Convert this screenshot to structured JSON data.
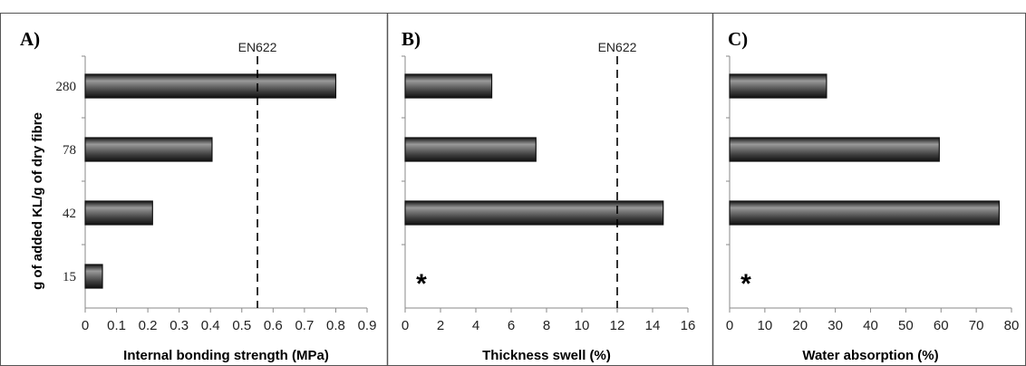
{
  "figure": {
    "ylabel": "g of added KL/g of dry fibre",
    "colors": {
      "bar_fill": "#3f3f3f",
      "bar_highlight": "#9a9a9a",
      "bar_edge": "#111111",
      "axis": "#8a8a8a",
      "frame": "#555555"
    }
  },
  "chart_data": [
    {
      "panel": "A)",
      "type": "bar",
      "orientation": "horizontal",
      "categories": [
        "15",
        "42",
        "78",
        "280"
      ],
      "values": [
        0.055,
        0.215,
        0.405,
        0.8
      ],
      "xlabel": "Internal bonding strength (MPa)",
      "xlim": [
        0,
        0.9
      ],
      "xticks": [
        "0",
        "0.1",
        "0.2",
        "0.3",
        "0.4",
        "0.5",
        "0.6",
        "0.7",
        "0.8",
        "0.9"
      ],
      "reference_line": {
        "label": "EN622",
        "value": 0.55
      },
      "missing_marker": null
    },
    {
      "panel": "B)",
      "type": "bar",
      "orientation": "horizontal",
      "categories": [
        "15",
        "42",
        "78",
        "280"
      ],
      "values": [
        null,
        14.6,
        7.4,
        4.9
      ],
      "xlabel": "Thickness swell (%)",
      "xlim": [
        0,
        16
      ],
      "xticks": [
        "0",
        "2",
        "4",
        "6",
        "8",
        "10",
        "12",
        "14",
        "16"
      ],
      "reference_line": {
        "label": "EN622",
        "value": 12
      },
      "missing_marker": "*"
    },
    {
      "panel": "C)",
      "type": "bar",
      "orientation": "horizontal",
      "categories": [
        "15",
        "42",
        "78",
        "280"
      ],
      "values": [
        null,
        76.5,
        59.5,
        27.5
      ],
      "xlabel": "Water absorption (%)",
      "xlim": [
        0,
        80
      ],
      "xticks": [
        "0",
        "10",
        "20",
        "30",
        "40",
        "50",
        "60",
        "70",
        "80"
      ],
      "reference_line": null,
      "missing_marker": "*"
    }
  ]
}
